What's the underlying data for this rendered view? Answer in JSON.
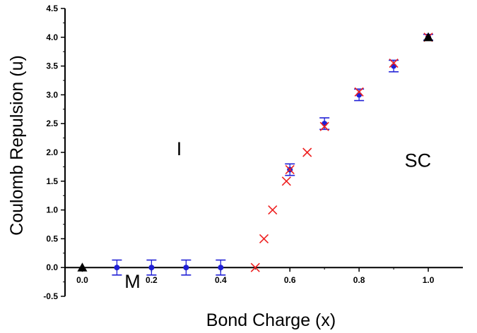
{
  "chart_data": {
    "type": "scatter",
    "xlabel": "Bond Charge (x)",
    "ylabel": "Coulomb Repulsion (u)",
    "xlim": [
      -0.05,
      1.1
    ],
    "ylim": [
      -0.5,
      4.5
    ],
    "x_ticks": [
      "0.0",
      "0.2",
      "0.4",
      "0.6",
      "0.8",
      "1.0"
    ],
    "y_ticks": [
      "-0.5",
      "0.0",
      "0.5",
      "1.0",
      "1.5",
      "2.0",
      "2.5",
      "3.0",
      "3.5",
      "4.0",
      "4.5"
    ],
    "grid": false,
    "colors": {
      "blue": "#1f1fd6",
      "red": "#ee2020",
      "black": "#000000"
    },
    "series": [
      {
        "marker": "circle-errorbar",
        "color": "blue",
        "points": [
          {
            "x": 0.1,
            "y": 0.0,
            "err": 0.13
          },
          {
            "x": 0.2,
            "y": 0.0,
            "err": 0.13
          },
          {
            "x": 0.3,
            "y": 0.0,
            "err": 0.13
          },
          {
            "x": 0.4,
            "y": 0.0,
            "err": 0.13
          },
          {
            "x": 0.6,
            "y": 1.7,
            "err": 0.1
          },
          {
            "x": 0.7,
            "y": 2.5,
            "err": 0.1
          },
          {
            "x": 0.8,
            "y": 3.0,
            "err": 0.1
          },
          {
            "x": 0.9,
            "y": 3.5,
            "err": 0.1
          },
          {
            "x": 1.0,
            "y": 4.0,
            "err": 0.05
          }
        ]
      },
      {
        "marker": "cross",
        "color": "red",
        "points": [
          {
            "x": 0.5,
            "y": 0.0
          },
          {
            "x": 0.525,
            "y": 0.5
          },
          {
            "x": 0.55,
            "y": 1.0
          },
          {
            "x": 0.59,
            "y": 1.5
          },
          {
            "x": 0.6,
            "y": 1.7
          },
          {
            "x": 0.65,
            "y": 2.0
          },
          {
            "x": 0.7,
            "y": 2.45
          },
          {
            "x": 0.8,
            "y": 3.05
          },
          {
            "x": 0.9,
            "y": 3.55
          },
          {
            "x": 1.0,
            "y": 4.0
          }
        ]
      },
      {
        "marker": "triangle",
        "color": "black",
        "points": [
          {
            "x": 0.0,
            "y": 0.0
          },
          {
            "x": 1.0,
            "y": 4.0
          }
        ]
      }
    ],
    "annotations": [
      {
        "text": "I",
        "x": 0.28,
        "y": 1.95
      },
      {
        "text": "SC",
        "x": 0.97,
        "y": 1.75
      },
      {
        "text": "M",
        "x": 0.145,
        "y": -0.35
      }
    ]
  }
}
